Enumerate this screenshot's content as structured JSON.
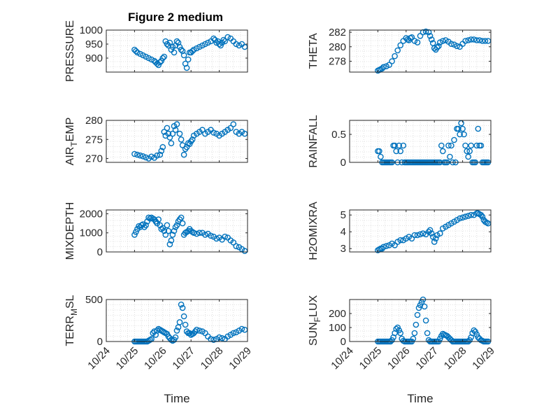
{
  "figure": {
    "title": "Figure 2 medium",
    "marker_color": "#0072BD",
    "axis_color": "#262626",
    "grid_color": "#d9d9d9"
  },
  "chart_data": [
    {
      "type": "scatter",
      "ylabel": "PRESSURE",
      "ylim": [
        850,
        1000
      ],
      "yticks": [
        1000,
        950,
        900
      ],
      "ytick_labels": [
        "1000",
        "950",
        "900"
      ],
      "xlabel": "",
      "xlim_days": [
        0,
        5
      ],
      "x": [
        1.0,
        1.05,
        1.1,
        1.2,
        1.3,
        1.4,
        1.5,
        1.6,
        1.7,
        1.75,
        1.8,
        1.85,
        1.9,
        1.95,
        2.0,
        2.05,
        2.1,
        2.15,
        2.2,
        2.25,
        2.3,
        2.35,
        2.4,
        2.45,
        2.5,
        2.55,
        2.6,
        2.65,
        2.7,
        2.75,
        2.8,
        2.85,
        2.9,
        2.95,
        3.0,
        3.05,
        3.1,
        3.2,
        3.3,
        3.4,
        3.5,
        3.6,
        3.7,
        3.8,
        3.85,
        3.9,
        3.95,
        4.0,
        4.05,
        4.1,
        4.15,
        4.2,
        4.3,
        4.4,
        4.5,
        4.6,
        4.7,
        4.8,
        4.9
      ],
      "y": [
        930,
        925,
        920,
        915,
        910,
        905,
        900,
        895,
        890,
        885,
        880,
        875,
        885,
        890,
        900,
        905,
        960,
        950,
        945,
        955,
        930,
        940,
        920,
        945,
        960,
        955,
        940,
        930,
        925,
        910,
        880,
        865,
        895,
        920,
        920,
        925,
        930,
        935,
        940,
        945,
        950,
        955,
        960,
        970,
        965,
        955,
        960,
        950,
        945,
        955,
        965,
        960,
        975,
        970,
        960,
        950,
        945,
        950,
        940
      ]
    },
    {
      "type": "scatter",
      "ylabel": "THETA",
      "ylim": [
        276.5,
        282.3
      ],
      "yticks": [
        282,
        280,
        278
      ],
      "ytick_labels": [
        "282",
        "280",
        "278"
      ],
      "xlabel": "",
      "xlim_days": [
        0,
        5
      ],
      "x": [
        1.0,
        1.05,
        1.1,
        1.15,
        1.2,
        1.3,
        1.4,
        1.5,
        1.6,
        1.7,
        1.8,
        1.9,
        2.0,
        2.05,
        2.1,
        2.15,
        2.2,
        2.3,
        2.4,
        2.5,
        2.6,
        2.7,
        2.8,
        2.85,
        2.9,
        2.95,
        3.0,
        3.05,
        3.1,
        3.15,
        3.2,
        3.3,
        3.4,
        3.5,
        3.6,
        3.7,
        3.8,
        3.9,
        4.0,
        4.1,
        4.2,
        4.3,
        4.4,
        4.5,
        4.6,
        4.7,
        4.8,
        4.9
      ],
      "y": [
        276.7,
        276.8,
        276.9,
        277.0,
        277.2,
        277.3,
        277.5,
        278.0,
        278.7,
        279.5,
        280.2,
        280.8,
        281.2,
        281.0,
        280.9,
        281.2,
        281.3,
        280.8,
        280.6,
        281.5,
        282.0,
        282.1,
        282.0,
        281.5,
        281.0,
        280.5,
        279.8,
        279.6,
        279.9,
        280.1,
        280.6,
        280.8,
        280.9,
        280.7,
        280.4,
        280.3,
        280.1,
        280.0,
        280.4,
        280.8,
        280.9,
        281.0,
        281.0,
        280.9,
        280.9,
        280.8,
        280.8,
        280.8
      ]
    },
    {
      "type": "scatter",
      "ylabel": "AIR_TEMP",
      "ylim": [
        269,
        280
      ],
      "yticks": [
        280,
        275,
        270
      ],
      "ytick_labels": [
        "280",
        "275",
        "270"
      ],
      "xlabel": "",
      "xlim_days": [
        0,
        5
      ],
      "x": [
        1.0,
        1.1,
        1.2,
        1.3,
        1.4,
        1.5,
        1.6,
        1.7,
        1.8,
        1.9,
        1.95,
        2.0,
        2.05,
        2.1,
        2.15,
        2.2,
        2.25,
        2.3,
        2.35,
        2.4,
        2.45,
        2.5,
        2.6,
        2.65,
        2.7,
        2.75,
        2.8,
        2.85,
        2.9,
        2.95,
        3.0,
        3.05,
        3.1,
        3.2,
        3.3,
        3.4,
        3.5,
        3.6,
        3.7,
        3.8,
        3.9,
        4.0,
        4.1,
        4.2,
        4.3,
        4.4,
        4.5,
        4.6,
        4.7,
        4.8,
        4.9
      ],
      "y": [
        271.2,
        271.0,
        270.8,
        270.6,
        270.3,
        270.0,
        270.5,
        270.2,
        270.8,
        271.0,
        272.0,
        273.0,
        277.0,
        276.0,
        278.0,
        276.5,
        275.5,
        274.0,
        276.5,
        278.5,
        277.5,
        279.0,
        276.5,
        275.0,
        273.5,
        271.0,
        272.5,
        273.0,
        274.0,
        273.8,
        274.5,
        275.0,
        276.0,
        276.5,
        277.0,
        277.5,
        276.5,
        277.0,
        277.5,
        276.8,
        276.5,
        276.0,
        276.5,
        277.0,
        277.5,
        278.0,
        279.0,
        277.0,
        276.5,
        277.0,
        276.5
      ]
    },
    {
      "type": "scatter",
      "ylabel": "RAINFALL",
      "ylim": [
        0,
        0.75
      ],
      "yticks": [
        0.5,
        0
      ],
      "ytick_labels": [
        "0.5",
        "0"
      ],
      "xlabel": "",
      "xlim_days": [
        0,
        5
      ],
      "x": [
        1.0,
        1.05,
        1.1,
        1.15,
        1.2,
        1.25,
        1.3,
        1.35,
        1.4,
        1.45,
        1.5,
        1.55,
        1.6,
        1.65,
        1.7,
        1.75,
        1.8,
        1.85,
        1.9,
        1.95,
        2.0,
        2.05,
        2.1,
        2.15,
        2.2,
        2.25,
        2.3,
        2.35,
        2.4,
        2.45,
        2.5,
        2.55,
        2.6,
        2.65,
        2.7,
        2.75,
        2.8,
        2.85,
        2.9,
        2.95,
        3.0,
        3.05,
        3.1,
        3.15,
        3.2,
        3.25,
        3.3,
        3.35,
        3.4,
        3.45,
        3.5,
        3.55,
        3.6,
        3.65,
        3.7,
        3.75,
        3.8,
        3.85,
        3.9,
        3.95,
        4.0,
        4.05,
        4.1,
        4.15,
        4.2,
        4.25,
        4.3,
        4.35,
        4.4,
        4.45,
        4.5,
        4.55,
        4.6,
        4.65,
        4.7,
        4.75,
        4.8,
        4.85,
        4.9
      ],
      "y": [
        0.2,
        0.2,
        0.1,
        0,
        0,
        0,
        0,
        0,
        0,
        0,
        0,
        0.3,
        0.3,
        0.2,
        0,
        0.3,
        0.2,
        0,
        0.3,
        0,
        0,
        0,
        0,
        0,
        0,
        0,
        0,
        0,
        0,
        0,
        0,
        0,
        0,
        0,
        0,
        0,
        0,
        0,
        0,
        0,
        0,
        0,
        0,
        0,
        0,
        0.3,
        0.2,
        0,
        0,
        0,
        0.3,
        0.1,
        0.3,
        0,
        0.4,
        0,
        0.6,
        0.6,
        0.5,
        0.7,
        0.6,
        0.5,
        0.3,
        0.2,
        0.1,
        0.2,
        0.3,
        0,
        0,
        0,
        0.3,
        0.6,
        0.3,
        0.3,
        0,
        0,
        0,
        0,
        0
      ]
    },
    {
      "type": "scatter",
      "ylabel": "MIXDEPTH",
      "ylim": [
        0,
        2200
      ],
      "yticks": [
        2000,
        1000,
        0
      ],
      "ytick_labels": [
        "2000",
        "1000",
        "0"
      ],
      "xlabel": "",
      "xlim_days": [
        0,
        5
      ],
      "x": [
        1.0,
        1.05,
        1.1,
        1.15,
        1.2,
        1.25,
        1.3,
        1.35,
        1.4,
        1.45,
        1.5,
        1.55,
        1.6,
        1.65,
        1.7,
        1.75,
        1.8,
        1.85,
        1.9,
        1.95,
        2.0,
        2.05,
        2.1,
        2.15,
        2.2,
        2.25,
        2.3,
        2.35,
        2.4,
        2.45,
        2.5,
        2.55,
        2.6,
        2.65,
        2.7,
        2.75,
        2.8,
        2.85,
        2.9,
        2.95,
        3.0,
        3.05,
        3.1,
        3.2,
        3.3,
        3.4,
        3.5,
        3.6,
        3.7,
        3.8,
        3.9,
        4.0,
        4.1,
        4.2,
        4.3,
        4.4,
        4.5,
        4.6,
        4.7,
        4.8,
        4.9
      ],
      "y": [
        900,
        1050,
        1200,
        1350,
        1300,
        1400,
        1450,
        1300,
        1400,
        1600,
        1800,
        1750,
        1800,
        1750,
        1700,
        1600,
        1500,
        1700,
        1400,
        1200,
        1250,
        1100,
        900,
        1400,
        1100,
        400,
        600,
        900,
        1100,
        1300,
        1400,
        1600,
        1700,
        1800,
        1500,
        900,
        1000,
        1050,
        1100,
        1200,
        1100,
        1050,
        1000,
        950,
        1000,
        1000,
        900,
        950,
        850,
        800,
        700,
        750,
        650,
        800,
        750,
        600,
        500,
        300,
        250,
        150,
        50
      ]
    },
    {
      "type": "scatter",
      "ylabel": "H2OMIXRA",
      "ylim": [
        2.8,
        5.3
      ],
      "yticks": [
        5,
        4,
        3
      ],
      "ytick_labels": [
        "5",
        "4",
        "3"
      ],
      "xlabel": "",
      "xlim_days": [
        0,
        5
      ],
      "x": [
        1.0,
        1.05,
        1.1,
        1.15,
        1.2,
        1.3,
        1.4,
        1.5,
        1.6,
        1.7,
        1.8,
        1.9,
        2.0,
        2.1,
        2.2,
        2.3,
        2.4,
        2.5,
        2.6,
        2.7,
        2.8,
        2.85,
        2.9,
        2.95,
        3.0,
        3.05,
        3.1,
        3.2,
        3.3,
        3.4,
        3.5,
        3.6,
        3.7,
        3.8,
        3.9,
        4.0,
        4.1,
        4.2,
        4.3,
        4.4,
        4.5,
        4.55,
        4.6,
        4.65,
        4.7,
        4.75,
        4.8,
        4.85,
        4.9
      ],
      "y": [
        2.9,
        2.95,
        3.0,
        3.0,
        3.1,
        3.15,
        3.2,
        3.3,
        3.2,
        3.4,
        3.5,
        3.5,
        3.6,
        3.7,
        3.6,
        3.8,
        3.8,
        3.85,
        3.9,
        3.85,
        4.0,
        4.1,
        3.9,
        3.7,
        3.4,
        3.6,
        3.8,
        3.9,
        4.2,
        4.3,
        4.4,
        4.5,
        4.6,
        4.7,
        4.8,
        4.85,
        4.9,
        4.95,
        5.0,
        5.0,
        5.1,
        5.1,
        5.05,
        5.0,
        4.9,
        4.7,
        4.6,
        4.55,
        4.5
      ]
    },
    {
      "type": "scatter",
      "ylabel": "TERR_MSL",
      "ylim": [
        0,
        500
      ],
      "yticks": [
        500,
        0
      ],
      "ytick_labels": [
        "500",
        "0"
      ],
      "xlabel": "Time",
      "xlim_days": [
        0,
        5
      ],
      "x": [
        1.0,
        1.05,
        1.1,
        1.15,
        1.2,
        1.25,
        1.3,
        1.35,
        1.4,
        1.45,
        1.5,
        1.55,
        1.6,
        1.65,
        1.7,
        1.75,
        1.8,
        1.85,
        1.9,
        1.95,
        2.0,
        2.05,
        2.1,
        2.15,
        2.2,
        2.25,
        2.3,
        2.35,
        2.4,
        2.45,
        2.5,
        2.55,
        2.6,
        2.65,
        2.7,
        2.75,
        2.8,
        2.85,
        2.9,
        2.95,
        3.0,
        3.05,
        3.1,
        3.15,
        3.2,
        3.3,
        3.4,
        3.5,
        3.6,
        3.7,
        3.8,
        3.9,
        4.0,
        4.1,
        4.2,
        4.3,
        4.4,
        4.5,
        4.6,
        4.7,
        4.8,
        4.9
      ],
      "y": [
        0,
        0,
        0,
        0,
        0,
        0,
        0,
        0,
        0,
        0,
        10,
        20,
        30,
        100,
        120,
        80,
        130,
        150,
        140,
        130,
        120,
        110,
        100,
        90,
        60,
        40,
        20,
        10,
        20,
        50,
        130,
        170,
        230,
        440,
        400,
        300,
        200,
        120,
        100,
        100,
        80,
        90,
        100,
        120,
        140,
        130,
        120,
        100,
        60,
        30,
        20,
        30,
        50,
        40,
        30,
        60,
        80,
        100,
        110,
        130,
        150,
        140
      ]
    },
    {
      "type": "scatter",
      "ylabel": "SUN_FLUX",
      "ylim": [
        0,
        300
      ],
      "yticks": [
        200,
        100,
        0
      ],
      "ytick_labels": [
        "200",
        "100",
        "0"
      ],
      "xlabel": "Time",
      "xlim_days": [
        0,
        5
      ],
      "x": [
        1.0,
        1.05,
        1.1,
        1.15,
        1.2,
        1.25,
        1.3,
        1.35,
        1.4,
        1.45,
        1.5,
        1.55,
        1.6,
        1.65,
        1.7,
        1.75,
        1.8,
        1.85,
        1.9,
        1.95,
        2.0,
        2.05,
        2.1,
        2.15,
        2.2,
        2.25,
        2.3,
        2.35,
        2.4,
        2.45,
        2.5,
        2.55,
        2.6,
        2.65,
        2.7,
        2.75,
        2.8,
        2.85,
        2.9,
        2.95,
        3.0,
        3.05,
        3.1,
        3.15,
        3.2,
        3.25,
        3.3,
        3.35,
        3.4,
        3.45,
        3.5,
        3.55,
        3.6,
        3.65,
        3.7,
        3.75,
        3.8,
        3.85,
        3.9,
        3.95,
        4.0,
        4.05,
        4.1,
        4.15,
        4.2,
        4.25,
        4.3,
        4.35,
        4.4,
        4.45,
        4.5,
        4.55,
        4.6,
        4.65,
        4.7,
        4.75,
        4.8,
        4.85,
        4.9
      ],
      "y": [
        0,
        0,
        0,
        0,
        0,
        0,
        0,
        0,
        0,
        0,
        10,
        30,
        60,
        90,
        100,
        80,
        60,
        20,
        5,
        0,
        0,
        0,
        0,
        0,
        0,
        20,
        60,
        120,
        190,
        240,
        260,
        280,
        300,
        250,
        150,
        60,
        10,
        0,
        0,
        0,
        0,
        0,
        0,
        0,
        20,
        40,
        55,
        50,
        45,
        40,
        30,
        20,
        10,
        0,
        0,
        0,
        0,
        0,
        0,
        0,
        0,
        0,
        0,
        0,
        0,
        10,
        30,
        60,
        80,
        70,
        50,
        30,
        20,
        10,
        5,
        0,
        0,
        0,
        0
      ]
    }
  ],
  "ylabel_parts": [
    {
      "main": "PRESSURE",
      "sub": "",
      "rest": ""
    },
    {
      "main": "THETA",
      "sub": "",
      "rest": ""
    },
    {
      "main": "AIR",
      "sub": "T",
      "rest": "EMP"
    },
    {
      "main": "RAINFALL",
      "sub": "",
      "rest": ""
    },
    {
      "main": "MIXDEPTH",
      "sub": "",
      "rest": ""
    },
    {
      "main": "H2OMIXRA",
      "sub": "",
      "rest": ""
    },
    {
      "main": "TERR",
      "sub": "M",
      "rest": "SL"
    },
    {
      "main": "SUN",
      "sub": "F",
      "rest": "LUX"
    }
  ],
  "x_tick_labels": [
    "10/24",
    "10/25",
    "10/26",
    "10/27",
    "10/28",
    "10/29"
  ],
  "x_label": "Time"
}
